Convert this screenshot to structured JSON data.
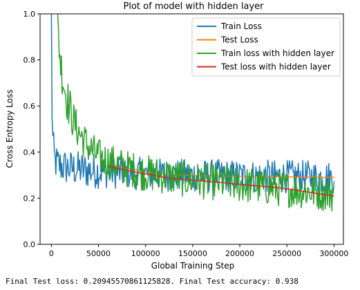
{
  "chart_data": {
    "type": "line",
    "title": "Plot of model with hidden layer",
    "xlabel": "Global Training Step",
    "ylabel": "Cross Entropy Loss",
    "xlim": [
      -12000,
      310000
    ],
    "ylim": [
      0.0,
      1.0
    ],
    "xticks": [
      0,
      50000,
      100000,
      150000,
      200000,
      250000,
      300000
    ],
    "yticks": [
      0.0,
      0.2,
      0.4,
      0.6,
      0.8,
      1.0
    ],
    "xtick_labels": [
      "0",
      "50000",
      "100000",
      "150000",
      "200000",
      "250000",
      "300000"
    ],
    "ytick_labels": [
      "0.0",
      "0.2",
      "0.4",
      "0.6",
      "0.8",
      "1.0"
    ],
    "grid": false,
    "legend_position": "top-right",
    "series": [
      {
        "name": "Train Loss",
        "color": "#1f77b4",
        "kind": "noisy",
        "x": [
          0,
          500,
          1000,
          2000,
          3000,
          4000,
          6000,
          8000,
          10000,
          15000,
          20000,
          30000,
          40000,
          60000,
          80000,
          100000,
          130000,
          160000,
          200000,
          250000,
          300000
        ],
        "values": [
          1.0,
          0.64,
          0.5,
          0.42,
          0.38,
          0.36,
          0.35,
          0.345,
          0.34,
          0.335,
          0.33,
          0.325,
          0.32,
          0.315,
          0.31,
          0.305,
          0.3,
          0.298,
          0.296,
          0.294,
          0.29
        ],
        "noise": [
          0.0,
          0.02,
          0.03,
          0.05,
          0.05,
          0.05,
          0.05,
          0.05,
          0.05,
          0.05,
          0.05,
          0.05,
          0.05,
          0.045,
          0.045,
          0.045,
          0.045,
          0.045,
          0.045,
          0.045,
          0.045
        ]
      },
      {
        "name": "Test Loss",
        "color": "#ff7f0e",
        "kind": "line",
        "x": [
          60000,
          80000,
          100000,
          120000,
          140000,
          160000,
          180000,
          200000,
          220000,
          240000,
          260000,
          280000,
          300000
        ],
        "values": [
          0.35,
          0.33,
          0.315,
          0.305,
          0.3,
          0.298,
          0.296,
          0.295,
          0.294,
          0.293,
          0.292,
          0.291,
          0.29
        ]
      },
      {
        "name": "Train loss with hidden layer",
        "color": "#2ca02c",
        "kind": "noisy",
        "x": [
          6000,
          8000,
          10000,
          15000,
          20000,
          25000,
          30000,
          40000,
          50000,
          60000,
          80000,
          100000,
          130000,
          160000,
          200000,
          250000,
          300000
        ],
        "values": [
          1.0,
          0.88,
          0.78,
          0.66,
          0.58,
          0.52,
          0.48,
          0.42,
          0.38,
          0.36,
          0.33,
          0.31,
          0.29,
          0.275,
          0.26,
          0.24,
          0.22
        ],
        "noise": [
          0.03,
          0.06,
          0.06,
          0.06,
          0.06,
          0.05,
          0.05,
          0.05,
          0.05,
          0.05,
          0.05,
          0.05,
          0.05,
          0.05,
          0.05,
          0.05,
          0.05
        ]
      },
      {
        "name": "Test loss with hidden layer",
        "color": "#d62728",
        "kind": "line",
        "x": [
          60000,
          80000,
          100000,
          120000,
          140000,
          160000,
          180000,
          200000,
          220000,
          240000,
          260000,
          280000,
          300000
        ],
        "values": [
          0.34,
          0.32,
          0.305,
          0.29,
          0.282,
          0.275,
          0.268,
          0.26,
          0.253,
          0.246,
          0.235,
          0.222,
          0.21
        ]
      }
    ]
  },
  "output_text": "Final Test loss: 0.20945570861125828. Final Test accuracy: 0.938"
}
